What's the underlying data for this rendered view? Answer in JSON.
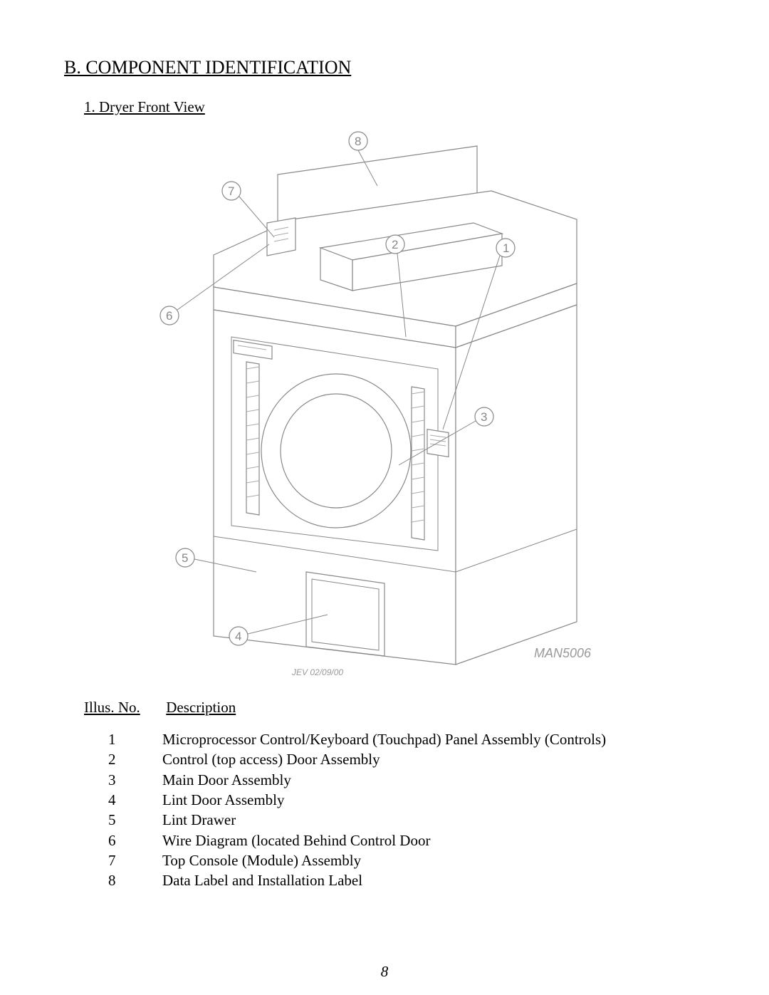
{
  "heading": "B.  COMPONENT IDENTIFICATION",
  "subheading": "1.  Dryer Front View",
  "diagram": {
    "ref_code": "MAN5006",
    "rev_code": "JEV 02/09/00",
    "callouts": {
      "c1": "1",
      "c2": "2",
      "c3": "3",
      "c4": "4",
      "c5": "5",
      "c6": "6",
      "c7": "7",
      "c8": "8"
    },
    "colors": {
      "stroke": "#888888",
      "stroke_light": "#aaaaaa",
      "label_text": "#999999",
      "num_text": "#888888",
      "background": "#ffffff"
    }
  },
  "legend": {
    "col_no_header": "Illus. No.",
    "col_desc_header": "Description",
    "rows": [
      {
        "no": "1",
        "desc": "Microprocessor Control/Keyboard (Touchpad)  Panel Assembly (Controls)"
      },
      {
        "no": "2",
        "desc": "Control (top access) Door Assembly"
      },
      {
        "no": "3",
        "desc": "Main Door Assembly"
      },
      {
        "no": "4",
        "desc": "Lint Door Assembly"
      },
      {
        "no": "5",
        "desc": "Lint Drawer"
      },
      {
        "no": "6",
        "desc": "Wire Diagram (located Behind Control Door"
      },
      {
        "no": "7",
        "desc": "Top Console (Module) Assembly"
      },
      {
        "no": "8",
        "desc": "Data Label and Installation Label"
      }
    ]
  },
  "page_number": "8"
}
